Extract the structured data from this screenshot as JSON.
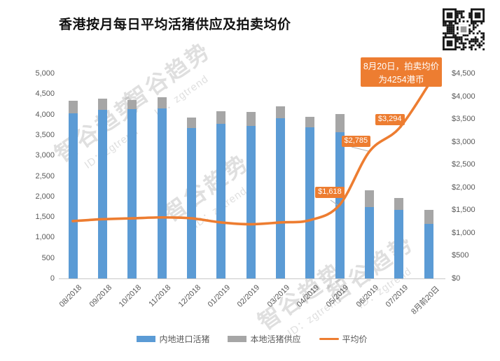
{
  "title": "香港按月每日平均活猪供应及拍卖均价",
  "watermark": {
    "line1": "智谷趋势",
    "line2": "ID：zgtrend"
  },
  "icons": {
    "qr_code": "qr-code"
  },
  "legend": [
    {
      "label": "内地进口活猪",
      "color": "#5B9BD5",
      "swatch": "bar"
    },
    {
      "label": "本地活猪供应",
      "color": "#A6A6A6",
      "swatch": "bar"
    },
    {
      "label": "平均价",
      "color": "#ED7D31",
      "swatch": "line"
    }
  ],
  "chart_data": {
    "type": "bar",
    "subtype": "stacked-columns-with-line",
    "title": "香港按月每日平均活猪供应及拍卖均价",
    "categories": [
      "08/2018",
      "09/2018",
      "10/2018",
      "11/2018",
      "12/2018",
      "01/2019",
      "02/2019",
      "03/2019",
      "04/2019",
      "05/2019",
      "06/2019",
      "07/2019",
      "8月前20日"
    ],
    "series": [
      {
        "name": "内地进口活猪",
        "type": "bar",
        "stack": true,
        "axis": "left",
        "color": "#5B9BD5",
        "values": [
          4030,
          4110,
          4130,
          4140,
          3670,
          3770,
          3720,
          3910,
          3690,
          3570,
          1740,
          1680,
          1330
        ]
      },
      {
        "name": "本地活猪供应",
        "type": "bar",
        "stack": true,
        "axis": "left",
        "color": "#A6A6A6",
        "values": [
          300,
          270,
          220,
          280,
          260,
          310,
          340,
          290,
          260,
          440,
          410,
          280,
          350
        ]
      },
      {
        "name": "平均价",
        "type": "line",
        "axis": "right",
        "color": "#ED7D31",
        "values": [
          1260,
          1300,
          1320,
          1340,
          1320,
          1230,
          1190,
          1230,
          1280,
          1618,
          2785,
          3294,
          4254
        ]
      }
    ],
    "left_axis": {
      "min": 0,
      "max": 5000,
      "step": 500,
      "ticks": [
        "5,000",
        "4,500",
        "4,000",
        "3,500",
        "3,000",
        "2,500",
        "2,000",
        "1,500",
        "1,000",
        "500",
        "0"
      ]
    },
    "right_axis": {
      "min": 0,
      "max": 4500,
      "step": 500,
      "ticks": [
        "$4,500",
        "$4,000",
        "$3,500",
        "$3,000",
        "$2,500",
        "$2,000",
        "$1,500",
        "$1,000",
        "$500",
        "$0"
      ]
    },
    "gridlines": false,
    "legend_position": "bottom",
    "annotations": [
      {
        "index": 9,
        "label": "$1,618"
      },
      {
        "index": 10,
        "label": "$2,785"
      },
      {
        "index": 11,
        "label": "$3,294"
      }
    ],
    "callout": {
      "line1": "8月20日，拍卖均价",
      "line2": "为4254港币",
      "value": 4254,
      "index": 12
    }
  },
  "colors": {
    "bar_blue": "#5B9BD5",
    "bar_gray": "#A6A6A6",
    "line_orange": "#ED7D31",
    "axis_text": "#595959"
  }
}
